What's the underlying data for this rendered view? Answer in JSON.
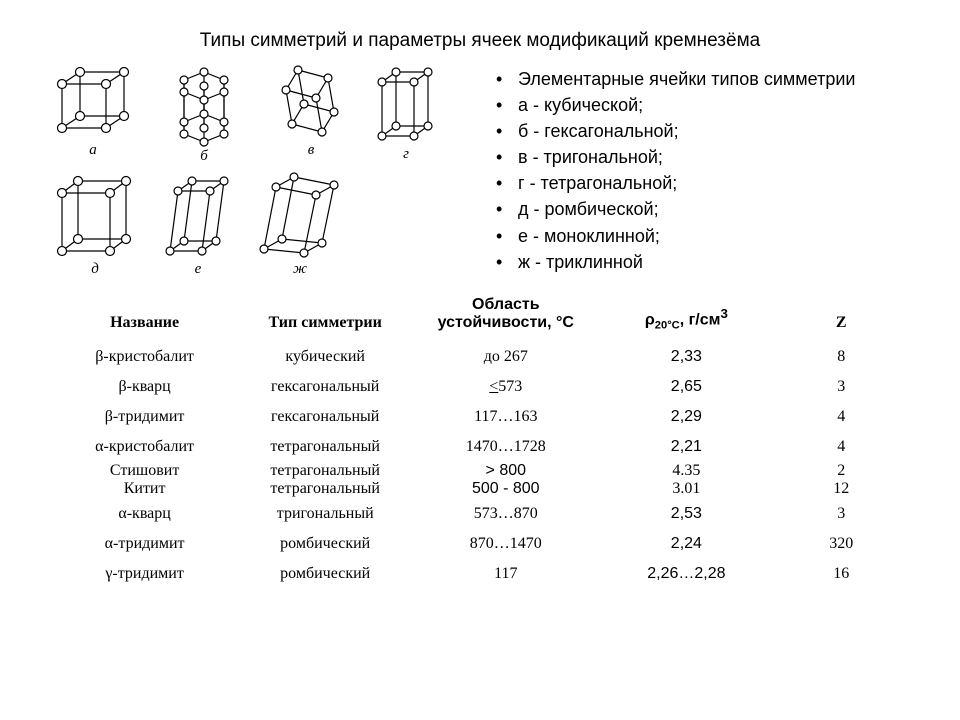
{
  "title": "Типы симметрий и параметры ячеек модификаций кремнезёма",
  "diagram_labels": {
    "a": "а",
    "b": "б",
    "v": "в",
    "g": "г",
    "d": "д",
    "e": "е",
    "zh": "ж"
  },
  "bullets": {
    "header": "Элементарные ячейки типов симметрии",
    "items": [
      "а - кубической;",
      "б - гексагональной;",
      "в - тригональной;",
      "г - тетрагональной;",
      "д - ромбической;",
      "е - моноклинной;",
      "ж - триклинной"
    ]
  },
  "table": {
    "headers": {
      "name": "Название",
      "sym": "Тип симметрии",
      "stab_l1": "Область",
      "stab_l2": "устойчивости, °С",
      "rho_html": "ρ<sub>20°С</sub>, г/см<sup>3</sup>",
      "z": "Z"
    },
    "rows": [
      {
        "name": "β-кристобалит",
        "sym": "кубический",
        "stab": "до 267",
        "rho": "2,33",
        "z": "8",
        "rho_arial": true
      },
      {
        "name": "β-кварц",
        "sym": "гексагональный",
        "stab": "≤573",
        "rho": "2,65",
        "z": "3",
        "rho_arial": true,
        "stab_html": "<u>&lt;</u>573"
      },
      {
        "name": "β-тридимит",
        "sym": "гексагональный",
        "stab": "117…163",
        "rho": "2,29",
        "z": "4",
        "rho_arial": true
      },
      {
        "name": "α-кристобалит",
        "sym": "тетрагональный",
        "stab": "1470…1728",
        "rho": "2,21",
        "z": "4",
        "rho_arial": true
      },
      {
        "name": "Стишовит",
        "sym": "тетрагональный",
        "stab": "> 800",
        "rho": "4.35",
        "z": "2",
        "stab_arial": true,
        "tight": true
      },
      {
        "name": "Китит",
        "sym": "тетрагональный",
        "stab": "500 - 800",
        "rho": "3.01",
        "z": "12",
        "stab_arial": true,
        "tight": true
      },
      {
        "name": "α-кварц",
        "sym": "тригональный",
        "stab": "573…870",
        "rho": "2,53",
        "z": "3",
        "rho_arial": true
      },
      {
        "name": "α-тридимит",
        "sym": "ромбический",
        "stab": "870…1470",
        "rho": "2,24",
        "z": "320",
        "rho_arial": true
      },
      {
        "name": "γ-тридимит",
        "sym": "ромбический",
        "stab": "117",
        "rho": "2,26…2,28",
        "z": "16",
        "rho_arial": true
      }
    ]
  },
  "style": {
    "page_bg": "#ffffff",
    "text_color": "#000000",
    "stroke": "#000000",
    "node_fill": "#ffffff",
    "node_r": 4,
    "stroke_w": 1.2
  }
}
